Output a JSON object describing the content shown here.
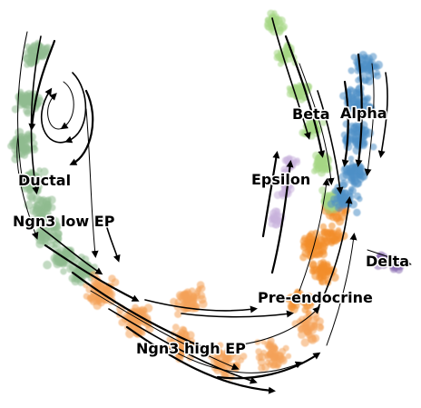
{
  "figure": {
    "kind": "velocity-stream-embedding",
    "clusters": [
      {
        "key": "ductal",
        "label": "Ductal",
        "color": "#8fbc8f"
      },
      {
        "key": "ngn3low",
        "label": "Ngn3 low EP",
        "color": "#8fbc8f"
      },
      {
        "key": "ngn3high",
        "label": "Ngn3 high EP",
        "color": "#f4a259"
      },
      {
        "key": "preendo",
        "label": "Pre-endocrine",
        "color": "#f28e2b"
      },
      {
        "key": "beta",
        "label": "Beta",
        "color": "#a6d785"
      },
      {
        "key": "alpha",
        "label": "Alpha",
        "color": "#4e8fc7"
      },
      {
        "key": "epsilon",
        "label": "Epsilon",
        "color": "#c9b3dd"
      },
      {
        "key": "delta",
        "label": "Delta",
        "color": "#8a6db3"
      }
    ]
  }
}
